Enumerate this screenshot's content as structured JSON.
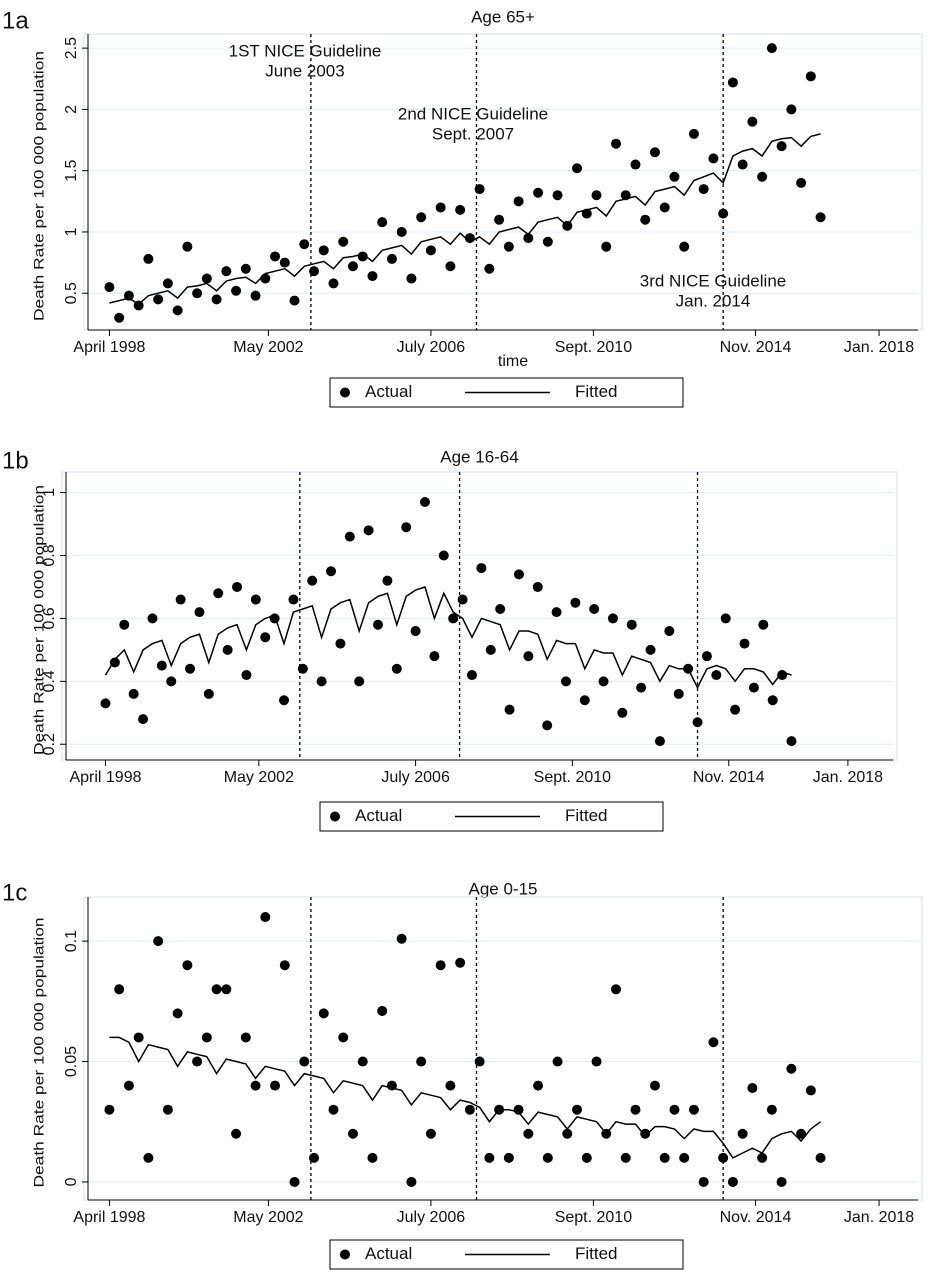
{
  "chart_data": [
    {
      "type": "scatter",
      "label": "1a",
      "title": "Age 65+",
      "ylabel": "Death Rate per 100 000 population",
      "xlabel": "time",
      "xlim": [
        1997.7,
        2019.0
      ],
      "xticks": [
        {
          "value": 1998.25,
          "label": "April 1998"
        },
        {
          "value": 2002.33,
          "label": "May 2002"
        },
        {
          "value": 2006.5,
          "label": "July 2006"
        },
        {
          "value": 2010.67,
          "label": "Sept. 2010"
        },
        {
          "value": 2014.83,
          "label": "Nov. 2014"
        },
        {
          "value": 2018.0,
          "label": "Jan. 2018"
        }
      ],
      "ylim": [
        0.2,
        2.55
      ],
      "yticks": [
        0.5,
        1,
        1.5,
        2,
        2.5
      ],
      "grid": true,
      "legend": "bottom",
      "vlines": [
        2003.42,
        2007.67,
        2014.0
      ],
      "annotations": [
        [
          "1ST NICE Guideline",
          "June 2003"
        ],
        [
          "2nd NICE Guideline",
          "Sept. 2007"
        ],
        [
          "3rd NICE Guideline",
          "Jan. 2014"
        ]
      ],
      "x": [
        1998.25,
        1998.5,
        1998.75,
        1999,
        1999.25,
        1999.5,
        1999.75,
        2000,
        2000.25,
        2000.5,
        2000.75,
        2001,
        2001.25,
        2001.5,
        2001.75,
        2002,
        2002.25,
        2002.5,
        2002.75,
        2003,
        2003.25,
        2003.5,
        2003.75,
        2004,
        2004.25,
        2004.5,
        2004.75,
        2005,
        2005.25,
        2005.5,
        2005.75,
        2006,
        2006.25,
        2006.5,
        2006.75,
        2007,
        2007.25,
        2007.5,
        2007.75,
        2008,
        2008.25,
        2008.5,
        2008.75,
        2009,
        2009.25,
        2009.5,
        2009.75,
        2010,
        2010.25,
        2010.5,
        2010.75,
        2011,
        2011.25,
        2011.5,
        2011.75,
        2012,
        2012.25,
        2012.5,
        2012.75,
        2013,
        2013.25,
        2013.5,
        2013.75,
        2014,
        2014.25,
        2014.5,
        2014.75,
        2015,
        2015.25,
        2015.5,
        2015.75,
        2016,
        2016.25,
        2016.5
      ],
      "series": [
        {
          "name": "Actual",
          "kind": "markers",
          "color": "#000000",
          "values": [
            0.55,
            0.3,
            0.48,
            0.4,
            0.78,
            0.45,
            0.58,
            0.36,
            0.88,
            0.5,
            0.62,
            0.45,
            0.68,
            0.52,
            0.7,
            0.48,
            0.62,
            0.8,
            0.75,
            0.44,
            0.9,
            0.68,
            0.85,
            0.58,
            0.92,
            0.72,
            0.8,
            0.64,
            1.08,
            0.78,
            1.0,
            0.62,
            1.12,
            0.85,
            1.2,
            0.72,
            1.18,
            0.95,
            1.35,
            0.7,
            1.1,
            0.88,
            1.25,
            0.95,
            1.32,
            0.92,
            1.3,
            1.05,
            1.52,
            1.15,
            1.3,
            0.88,
            1.72,
            1.3,
            1.55,
            1.1,
            1.65,
            1.2,
            1.45,
            0.88,
            1.8,
            1.35,
            1.6,
            1.15,
            2.22,
            1.55,
            1.9,
            1.45,
            2.5,
            1.7,
            2.0,
            1.4,
            2.27,
            1.12
          ]
        },
        {
          "name": "Fitted",
          "kind": "line",
          "color": "#000000",
          "values": [
            0.42,
            0.44,
            0.46,
            0.41,
            0.48,
            0.5,
            0.52,
            0.46,
            0.55,
            0.56,
            0.58,
            0.52,
            0.6,
            0.62,
            0.63,
            0.58,
            0.66,
            0.68,
            0.7,
            0.64,
            0.72,
            0.74,
            0.76,
            0.7,
            0.79,
            0.8,
            0.82,
            0.76,
            0.85,
            0.87,
            0.89,
            0.82,
            0.92,
            0.94,
            0.96,
            0.9,
            0.99,
            0.92,
            0.96,
            0.9,
            1.0,
            1.02,
            1.04,
            0.98,
            1.08,
            1.1,
            1.12,
            1.05,
            1.16,
            1.18,
            1.2,
            1.13,
            1.25,
            1.27,
            1.29,
            1.22,
            1.33,
            1.35,
            1.37,
            1.3,
            1.42,
            1.45,
            1.48,
            1.4,
            1.62,
            1.66,
            1.68,
            1.62,
            1.74,
            1.76,
            1.77,
            1.7,
            1.78,
            1.8
          ]
        }
      ]
    },
    {
      "type": "scatter",
      "label": "1b",
      "title": "Age 16-64",
      "ylabel": "Death Rate per 100 000 population",
      "xlim": [
        1997.2,
        2019.2
      ],
      "xticks": [
        {
          "value": 1998.25,
          "label": "April 1998"
        },
        {
          "value": 2002.33,
          "label": "May 2002"
        },
        {
          "value": 2006.5,
          "label": "July 2006"
        },
        {
          "value": 2010.67,
          "label": "Sept. 2010"
        },
        {
          "value": 2014.83,
          "label": "Nov. 2014"
        },
        {
          "value": 2018.0,
          "label": "Jan. 2018"
        }
      ],
      "ylim": [
        0.15,
        1.04
      ],
      "yticks": [
        0.2,
        0.4,
        0.6,
        0.8,
        1
      ],
      "grid": true,
      "legend": "bottom",
      "vlines": [
        2003.42,
        2007.67,
        2014.0
      ],
      "x": [
        1998.25,
        1998.5,
        1998.75,
        1999,
        1999.25,
        1999.5,
        1999.75,
        2000,
        2000.25,
        2000.5,
        2000.75,
        2001,
        2001.25,
        2001.5,
        2001.75,
        2002,
        2002.25,
        2002.5,
        2002.75,
        2003,
        2003.25,
        2003.5,
        2003.75,
        2004,
        2004.25,
        2004.5,
        2004.75,
        2005,
        2005.25,
        2005.5,
        2005.75,
        2006,
        2006.25,
        2006.5,
        2006.75,
        2007,
        2007.25,
        2007.5,
        2007.75,
        2008,
        2008.25,
        2008.5,
        2008.75,
        2009,
        2009.25,
        2009.5,
        2009.75,
        2010,
        2010.25,
        2010.5,
        2010.75,
        2011,
        2011.25,
        2011.5,
        2011.75,
        2012,
        2012.25,
        2012.5,
        2012.75,
        2013,
        2013.25,
        2013.5,
        2013.75,
        2014,
        2014.25,
        2014.5,
        2014.75,
        2015,
        2015.25,
        2015.5,
        2015.75,
        2016,
        2016.25,
        2016.5
      ],
      "series": [
        {
          "name": "Actual",
          "kind": "markers",
          "color": "#000000",
          "values": [
            0.33,
            0.46,
            0.58,
            0.36,
            0.28,
            0.6,
            0.45,
            0.4,
            0.66,
            0.44,
            0.62,
            0.36,
            0.68,
            0.5,
            0.7,
            0.42,
            0.66,
            0.54,
            0.6,
            0.34,
            0.66,
            0.44,
            0.72,
            0.4,
            0.75,
            0.52,
            0.86,
            0.4,
            0.88,
            0.58,
            0.72,
            0.44,
            0.89,
            0.56,
            0.97,
            0.48,
            0.8,
            0.6,
            0.66,
            0.42,
            0.76,
            0.5,
            0.63,
            0.31,
            0.74,
            0.48,
            0.7,
            0.26,
            0.62,
            0.4,
            0.65,
            0.34,
            0.63,
            0.4,
            0.6,
            0.3,
            0.58,
            0.38,
            0.5,
            0.21,
            0.56,
            0.36,
            0.44,
            0.27,
            0.48,
            0.42,
            0.6,
            0.31,
            0.52,
            0.38,
            0.58,
            0.34,
            0.42,
            0.21
          ]
        },
        {
          "name": "Fitted",
          "kind": "line",
          "color": "#000000",
          "values": [
            0.42,
            0.47,
            0.5,
            0.43,
            0.5,
            0.52,
            0.53,
            0.45,
            0.52,
            0.54,
            0.55,
            0.46,
            0.55,
            0.57,
            0.58,
            0.5,
            0.58,
            0.6,
            0.61,
            0.52,
            0.62,
            0.63,
            0.64,
            0.54,
            0.63,
            0.65,
            0.66,
            0.56,
            0.65,
            0.67,
            0.68,
            0.58,
            0.67,
            0.69,
            0.7,
            0.6,
            0.68,
            0.62,
            0.6,
            0.54,
            0.6,
            0.59,
            0.58,
            0.5,
            0.56,
            0.56,
            0.55,
            0.47,
            0.53,
            0.52,
            0.52,
            0.44,
            0.5,
            0.49,
            0.49,
            0.42,
            0.48,
            0.47,
            0.46,
            0.4,
            0.45,
            0.44,
            0.44,
            0.38,
            0.44,
            0.45,
            0.44,
            0.4,
            0.44,
            0.44,
            0.43,
            0.39,
            0.43,
            0.42
          ]
        }
      ]
    },
    {
      "type": "scatter",
      "label": "1c",
      "title": "Age 0-15",
      "ylabel": "Death Rate per 100 000 population",
      "xlim": [
        1997.7,
        2019.0
      ],
      "xticks": [
        {
          "value": 1998.25,
          "label": "April 1998"
        },
        {
          "value": 2002.33,
          "label": "May 2002"
        },
        {
          "value": 2006.5,
          "label": "July 2006"
        },
        {
          "value": 2010.67,
          "label": "Sept. 2010"
        },
        {
          "value": 2014.83,
          "label": "Nov. 2014"
        },
        {
          "value": 2018.0,
          "label": "Jan. 2018"
        }
      ],
      "ylim": [
        -0.0075,
        0.115
      ],
      "yticks": [
        0,
        0.05,
        0.1
      ],
      "grid": true,
      "legend": "bottom",
      "vlines": [
        2003.42,
        2007.67,
        2014.0
      ],
      "x": [
        1998.25,
        1998.5,
        1998.75,
        1999,
        1999.25,
        1999.5,
        1999.75,
        2000,
        2000.25,
        2000.5,
        2000.75,
        2001,
        2001.25,
        2001.5,
        2001.75,
        2002,
        2002.25,
        2002.5,
        2002.75,
        2003,
        2003.25,
        2003.5,
        2003.75,
        2004,
        2004.25,
        2004.5,
        2004.75,
        2005,
        2005.25,
        2005.5,
        2005.75,
        2006,
        2006.25,
        2006.5,
        2006.75,
        2007,
        2007.25,
        2007.5,
        2007.75,
        2008,
        2008.25,
        2008.5,
        2008.75,
        2009,
        2009.25,
        2009.5,
        2009.75,
        2010,
        2010.25,
        2010.5,
        2010.75,
        2011,
        2011.25,
        2011.5,
        2011.75,
        2012,
        2012.25,
        2012.5,
        2012.75,
        2013,
        2013.25,
        2013.5,
        2013.75,
        2014,
        2014.25,
        2014.5,
        2014.75,
        2015,
        2015.25,
        2015.5,
        2015.75,
        2016,
        2016.25,
        2016.5
      ],
      "series": [
        {
          "name": "Actual",
          "kind": "markers",
          "color": "#000000",
          "values": [
            0.03,
            0.08,
            0.04,
            0.06,
            0.01,
            0.1,
            0.03,
            0.07,
            0.09,
            0.05,
            0.06,
            0.08,
            0.08,
            0.02,
            0.06,
            0.04,
            0.11,
            0.04,
            0.09,
            0.0,
            0.05,
            0.01,
            0.07,
            0.03,
            0.06,
            0.02,
            0.05,
            0.01,
            0.071,
            0.04,
            0.101,
            0.0,
            0.05,
            0.02,
            0.09,
            0.04,
            0.091,
            0.03,
            0.05,
            0.01,
            0.03,
            0.01,
            0.03,
            0.02,
            0.04,
            0.01,
            0.05,
            0.02,
            0.03,
            0.01,
            0.05,
            0.02,
            0.08,
            0.01,
            0.03,
            0.02,
            0.04,
            0.01,
            0.03,
            0.01,
            0.03,
            0.0,
            0.058,
            0.01,
            0.0,
            0.02,
            0.039,
            0.01,
            0.03,
            0.0,
            0.047,
            0.02,
            0.038,
            0.01
          ]
        },
        {
          "name": "Fitted",
          "kind": "line",
          "color": "#000000",
          "values": [
            0.06,
            0.06,
            0.058,
            0.05,
            0.057,
            0.056,
            0.055,
            0.048,
            0.054,
            0.053,
            0.052,
            0.045,
            0.051,
            0.05,
            0.049,
            0.043,
            0.048,
            0.047,
            0.046,
            0.04,
            0.045,
            0.044,
            0.043,
            0.037,
            0.042,
            0.041,
            0.04,
            0.034,
            0.04,
            0.039,
            0.038,
            0.032,
            0.037,
            0.036,
            0.035,
            0.03,
            0.034,
            0.033,
            0.031,
            0.025,
            0.03,
            0.03,
            0.029,
            0.024,
            0.029,
            0.028,
            0.027,
            0.022,
            0.027,
            0.026,
            0.025,
            0.02,
            0.025,
            0.024,
            0.024,
            0.019,
            0.023,
            0.023,
            0.022,
            0.018,
            0.022,
            0.021,
            0.021,
            0.016,
            0.01,
            0.012,
            0.014,
            0.012,
            0.018,
            0.02,
            0.021,
            0.017,
            0.022,
            0.025
          ]
        }
      ]
    }
  ]
}
